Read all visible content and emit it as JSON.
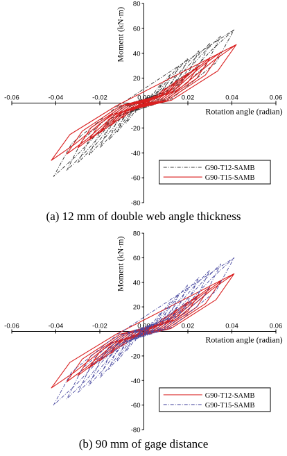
{
  "chart_data": [
    {
      "type": "line",
      "caption": "(a) 12 mm of double web angle thickness",
      "xlabel": "Rotation angle (radian)",
      "ylabel": "Moment (kN·m)",
      "xlim": [
        -0.06,
        0.06
      ],
      "ylim": [
        -80,
        80
      ],
      "xticks": [
        -0.06,
        -0.04,
        -0.02,
        0,
        0.02,
        0.04,
        0.06
      ],
      "xtick_labels": [
        "-0.06",
        "-0.04",
        "-0.02",
        "0.00",
        "0.02",
        "0.04",
        "0.06"
      ],
      "yticks": [
        -80,
        -60,
        -40,
        -20,
        0,
        20,
        40,
        60,
        80
      ],
      "ytick_labels": [
        "-80",
        "-60",
        "-40",
        "-20",
        "0",
        "20",
        "40",
        "60",
        "80"
      ],
      "legend_position": "bottom-right",
      "series": [
        {
          "name": "G90-T12-SAMB",
          "color": "#333333",
          "style": "dashdot",
          "peaks": [
            [
              0.004,
              8
            ],
            [
              0.008,
              16
            ],
            [
              0.012,
              23
            ],
            [
              0.016,
              30
            ],
            [
              0.02,
              36
            ],
            [
              0.025,
              42
            ],
            [
              0.03,
              48
            ],
            [
              0.035,
              54
            ],
            [
              0.041,
              59
            ]
          ],
          "neg_peaks": [
            [
              -0.004,
              -8
            ],
            [
              -0.008,
              -16
            ],
            [
              -0.012,
              -23
            ],
            [
              -0.016,
              -30
            ],
            [
              -0.02,
              -36
            ],
            [
              -0.025,
              -42
            ],
            [
              -0.03,
              -48
            ],
            [
              -0.035,
              -54
            ],
            [
              -0.041,
              -59
            ]
          ],
          "end": [
            0.041,
            59
          ],
          "start": [
            -0.041,
            -59
          ]
        },
        {
          "name": "G90-T15-SAMB",
          "color": "#d92020",
          "style": "solid",
          "peaks": [
            [
              0.005,
              6
            ],
            [
              0.01,
              12
            ],
            [
              0.015,
              18
            ],
            [
              0.02,
              24
            ],
            [
              0.025,
              30
            ],
            [
              0.03,
              36
            ],
            [
              0.035,
              41
            ],
            [
              0.042,
              47
            ]
          ],
          "neg_peaks": [
            [
              -0.005,
              -6
            ],
            [
              -0.01,
              -12
            ],
            [
              -0.015,
              -18
            ],
            [
              -0.02,
              -24
            ],
            [
              -0.025,
              -30
            ],
            [
              -0.03,
              -36
            ],
            [
              -0.035,
              -41
            ],
            [
              -0.042,
              -46
            ]
          ],
          "end": [
            0.042,
            47
          ],
          "start": [
            -0.042,
            -46
          ]
        }
      ]
    },
    {
      "type": "line",
      "caption": "(b) 90 mm of gage distance",
      "xlabel": "Rotation angle (radian)",
      "ylabel": "Moment (kN·m)",
      "xlim": [
        -0.06,
        0.06
      ],
      "ylim": [
        -80,
        80
      ],
      "xticks": [
        -0.06,
        -0.04,
        -0.02,
        0,
        0.02,
        0.04,
        0.06
      ],
      "xtick_labels": [
        "-0.06",
        "-0.04",
        "-0.02",
        "0.00",
        "0.02",
        "0.04",
        "0.06"
      ],
      "yticks": [
        -80,
        -60,
        -40,
        -20,
        0,
        20,
        40,
        60,
        80
      ],
      "ytick_labels": [
        "-80",
        "-60",
        "-40",
        "-20",
        "0",
        "20",
        "40",
        "60",
        "80"
      ],
      "legend_position": "bottom-right",
      "series": [
        {
          "name": "G90-T12-SAMB",
          "color": "#d92020",
          "style": "solid",
          "peaks": [
            [
              0.005,
              6
            ],
            [
              0.01,
              12
            ],
            [
              0.015,
              18
            ],
            [
              0.02,
              24
            ],
            [
              0.025,
              30
            ],
            [
              0.03,
              36
            ],
            [
              0.035,
              41
            ],
            [
              0.041,
              47
            ]
          ],
          "neg_peaks": [
            [
              -0.005,
              -6
            ],
            [
              -0.01,
              -12
            ],
            [
              -0.015,
              -18
            ],
            [
              -0.02,
              -24
            ],
            [
              -0.025,
              -30
            ],
            [
              -0.03,
              -36
            ],
            [
              -0.035,
              -41
            ],
            [
              -0.042,
              -46
            ]
          ],
          "end": [
            0.041,
            47
          ],
          "start": [
            -0.042,
            -46
          ]
        },
        {
          "name": "G90-T15-SAMB",
          "color": "#4a4aa0",
          "style": "dashdot",
          "peaks": [
            [
              0.004,
              8
            ],
            [
              0.008,
              16
            ],
            [
              0.012,
              24
            ],
            [
              0.016,
              31
            ],
            [
              0.02,
              38
            ],
            [
              0.025,
              44
            ],
            [
              0.03,
              50
            ],
            [
              0.035,
              55
            ],
            [
              0.041,
              60
            ]
          ],
          "neg_peaks": [
            [
              -0.004,
              -8
            ],
            [
              -0.008,
              -16
            ],
            [
              -0.012,
              -24
            ],
            [
              -0.016,
              -31
            ],
            [
              -0.02,
              -38
            ],
            [
              -0.025,
              -44
            ],
            [
              -0.03,
              -50
            ],
            [
              -0.035,
              -55
            ],
            [
              -0.041,
              -60
            ]
          ],
          "end": [
            0.041,
            60
          ],
          "start": [
            -0.041,
            -60
          ]
        }
      ]
    }
  ]
}
